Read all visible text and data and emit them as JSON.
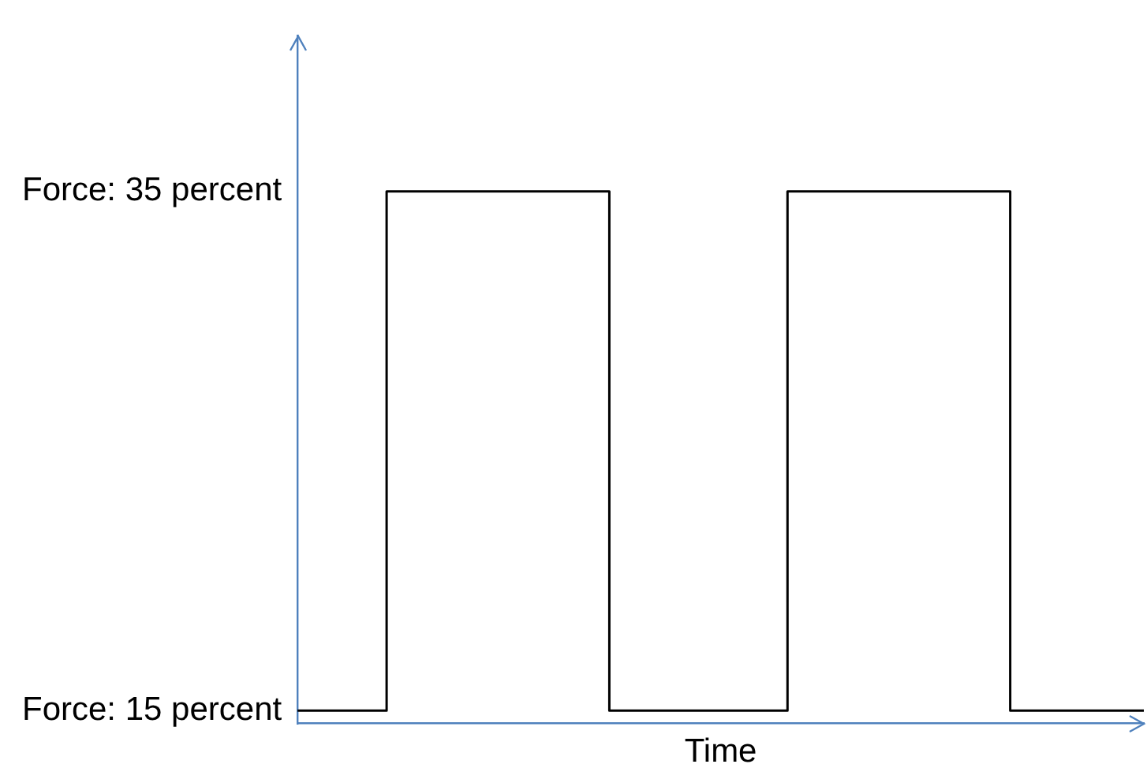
{
  "chart_data": {
    "type": "step",
    "xlabel": "Time",
    "categories": [
      null,
      null,
      null,
      null,
      null,
      null,
      null,
      null,
      null,
      null,
      null,
      null,
      null,
      null,
      null,
      null,
      null,
      null,
      null,
      null
    ],
    "values": [
      15,
      15,
      15,
      35,
      35,
      35,
      35,
      35,
      15,
      15,
      15,
      15,
      35,
      35,
      35,
      35,
      35,
      15,
      15,
      15
    ],
    "color": "#000000",
    "ylim": [
      14.5,
      41
    ],
    "yticks": [
      {
        "value": 15,
        "label": "Force: 15 percent"
      },
      {
        "value": 35,
        "label": "Force: 35 percent"
      }
    ],
    "grid": false,
    "tick_labels": "y",
    "marker": "none"
  }
}
